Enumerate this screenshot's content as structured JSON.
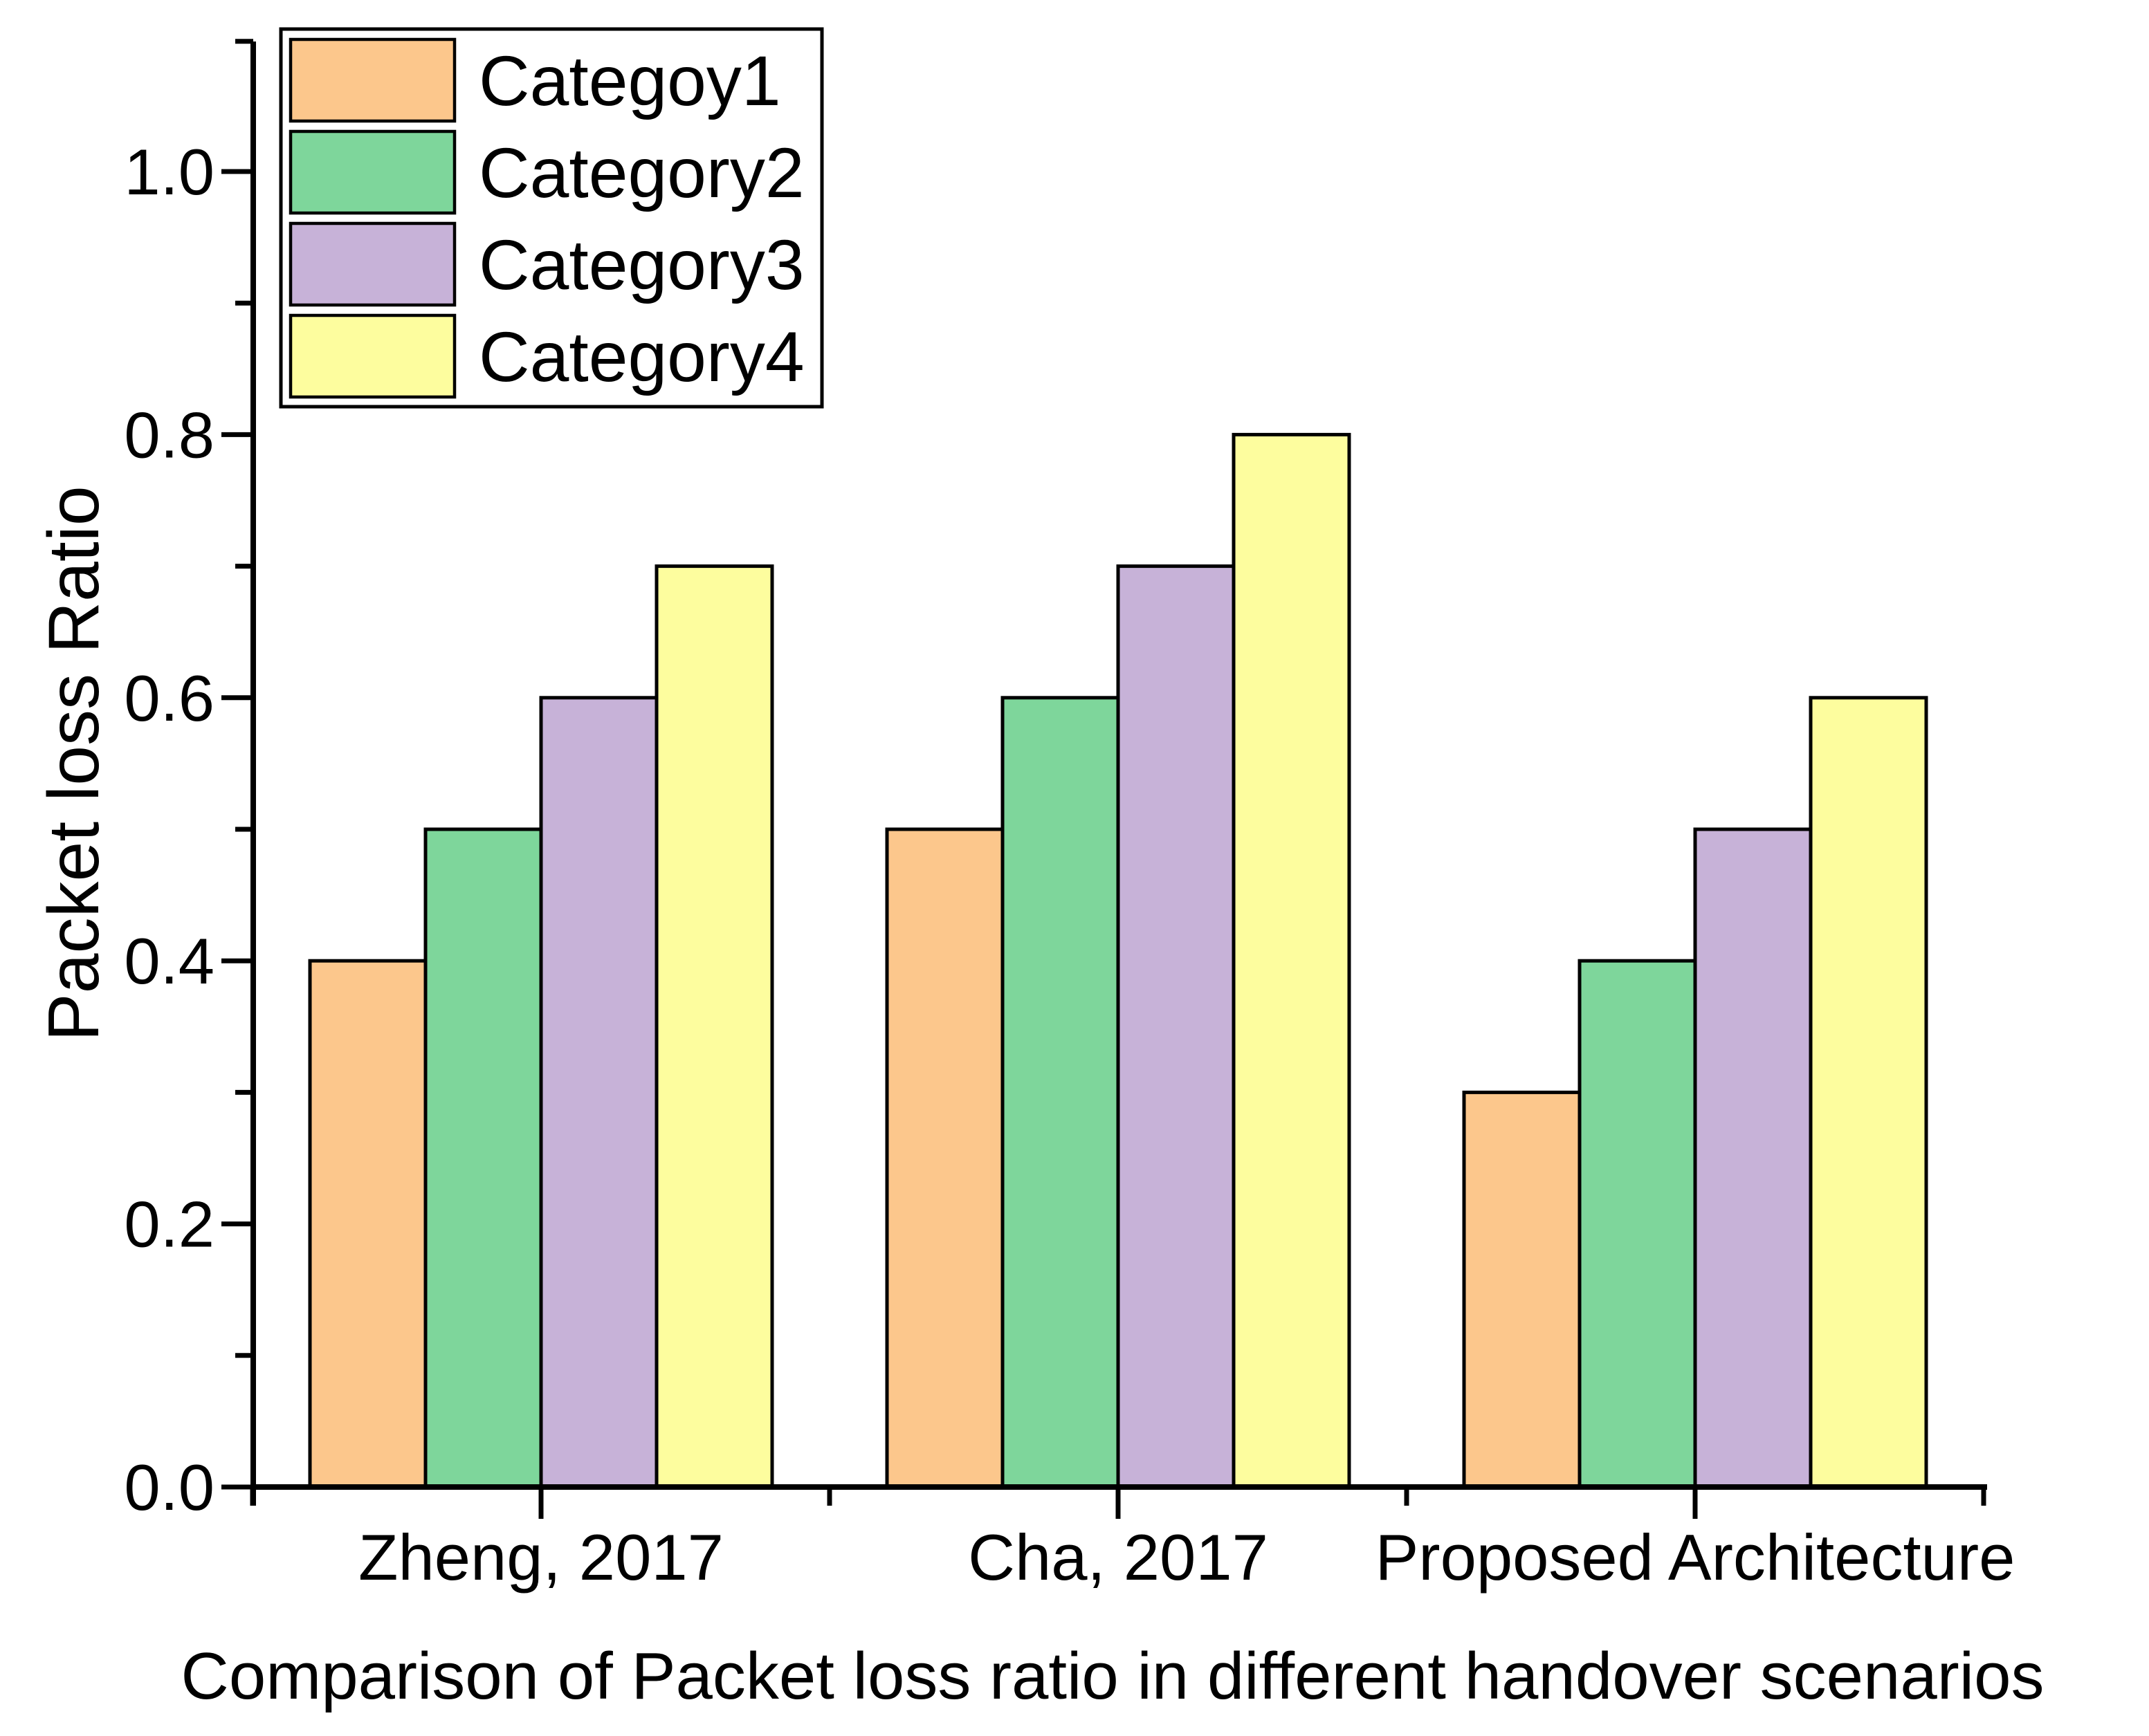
{
  "chart_data": {
    "type": "bar",
    "title": "Comparison of Packet loss ratio in different handover scenarios",
    "ylabel": "Packet loss Ratio",
    "xlabel": "",
    "categories": [
      "Zheng, 2017",
      "Cha, 2017",
      "Proposed Architecture"
    ],
    "series": [
      {
        "name": "Categoy1",
        "color": "#FCC78C",
        "values": [
          0.4,
          0.5,
          0.3
        ]
      },
      {
        "name": "Category2",
        "color": "#7ED69B",
        "values": [
          0.5,
          0.6,
          0.4
        ]
      },
      {
        "name": "Category3",
        "color": "#C7B2D8",
        "values": [
          0.6,
          0.7,
          0.5
        ]
      },
      {
        "name": "Category4",
        "color": "#FDFD9E",
        "values": [
          0.7,
          0.8,
          0.6
        ]
      }
    ],
    "ylim": [
      0.0,
      1.1
    ],
    "ytick_labels": [
      "0.0",
      "0.2",
      "0.4",
      "0.6",
      "0.8",
      "1.0"
    ],
    "ytick_values": [
      0.0,
      0.2,
      0.4,
      0.6,
      0.8,
      1.0
    ],
    "ytick_minor_values": [
      0.1,
      0.3,
      0.5,
      0.7,
      0.9,
      1.099
    ],
    "legend": {
      "position": "top-left",
      "frame": true,
      "entries": [
        "Categoy1",
        "Category2",
        "Category3",
        "Category4"
      ]
    },
    "grid": false,
    "bar_edge_color": "#000000",
    "axis_color": "#000000",
    "background": "#FFFFFF"
  }
}
